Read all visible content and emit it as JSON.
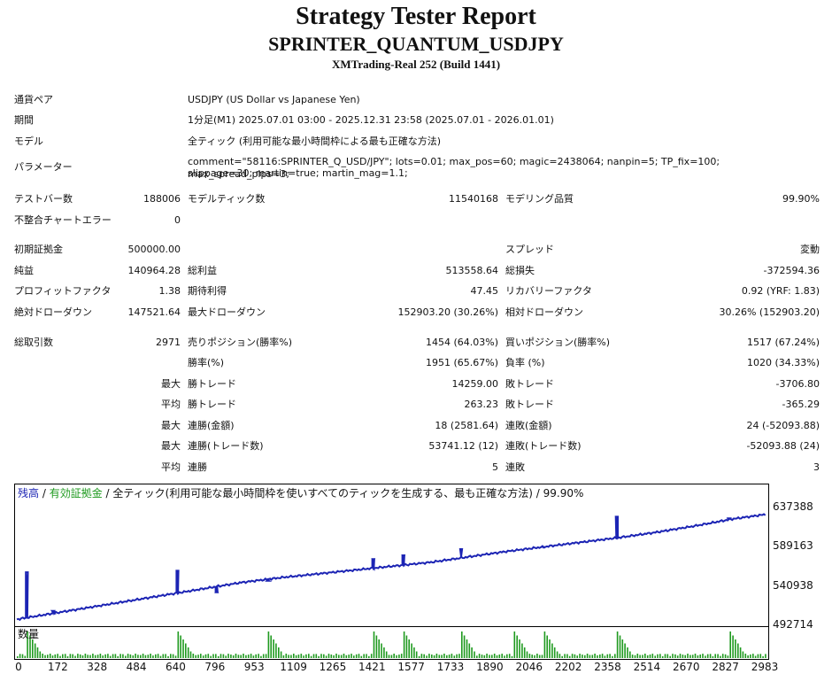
{
  "report": {
    "title": "Strategy Tester Report",
    "subtitle": "SPRINTER_QUANTUM_USDJPY",
    "server": "XMTrading-Real 252 (Build 1441)"
  },
  "info": {
    "symbol_label": "通貨ペア",
    "symbol_value": "USDJPY (US Dollar vs Japanese Yen)",
    "period_label": "期間",
    "period_value": "1分足(M1) 2025.07.01 03:00 - 2025.12.31 23:58 (2025.07.01 - 2026.01.01)",
    "model_label": "モデル",
    "model_value": "全ティック (利用可能な最小時間枠による最も正確な方法)",
    "params_label": "パラメーター",
    "params_line1": "comment=\"58116:SPRINTER_Q_USD/JPY\"; lots=0.01; max_pos=60; magic=2438064; nanpin=5; TP_fix=100; max_spread_pips=3;",
    "params_line2": "slippage=30; martin=true; martin_mag=1.1;"
  },
  "stats": {
    "bars_label": "テストバー数",
    "bars_value": "188006",
    "ticks_label": "モデルティック数",
    "ticks_value": "11540168",
    "quality_label": "モデリング品質",
    "quality_value": "99.90%",
    "errors_label": "不整合チャートエラー",
    "errors_value": "0",
    "deposit_label": "初期証拠金",
    "deposit_value": "500000.00",
    "spread_label": "スプレッド",
    "spread_value": "変動",
    "net_label": "純益",
    "net_value": "140964.28",
    "gross_profit_label": "総利益",
    "gross_profit_value": "513558.64",
    "gross_loss_label": "総損失",
    "gross_loss_value": "-372594.36",
    "pf_label": "プロフィットファクタ",
    "pf_value": "1.38",
    "payoff_label": "期待利得",
    "payoff_value": "47.45",
    "recovery_label": "リカバリーファクタ",
    "recovery_value": "0.92 (YRF: 1.83)",
    "abs_dd_label": "絶対ドローダウン",
    "abs_dd_value": "147521.64",
    "max_dd_label": "最大ドローダウン",
    "max_dd_value": "152903.20 (30.26%)",
    "rel_dd_label": "相対ドローダウン",
    "rel_dd_value": "30.26% (152903.20)",
    "trades_label": "総取引数",
    "trades_value": "2971",
    "short_label": "売りポジション(勝率%)",
    "short_value": "1454 (64.03%)",
    "long_label": "買いポジション(勝率%)",
    "long_value": "1517 (67.24%)",
    "win_rate_label": "勝率(%)",
    "win_rate_value": "1951 (65.67%)",
    "loss_rate_label": "負率 (%)",
    "loss_rate_value": "1020 (34.33%)",
    "max_prefix": "最大",
    "avg_prefix": "平均",
    "largest_win_label": "勝トレード",
    "largest_win_value": "14259.00",
    "largest_loss_label": "敗トレード",
    "largest_loss_value": "-3706.80",
    "avg_win_label": "勝トレード",
    "avg_win_value": "263.23",
    "avg_loss_label": "敗トレード",
    "avg_loss_value": "-365.29",
    "consec_wins_label": "連勝(金額)",
    "consec_wins_value": "18 (2581.64)",
    "consec_losses_label": "連敗(金額)",
    "consec_losses_value": "24 (-52093.88)",
    "consec_profit_label": "連勝(トレード数)",
    "consec_profit_value": "53741.12 (12)",
    "consec_loss_label": "連敗(トレード数)",
    "consec_loss_value": "-52093.88 (24)",
    "avg_consec_wins_label": "連勝",
    "avg_consec_wins_value": "5",
    "avg_consec_losses_label": "連敗",
    "avg_consec_losses_value": "3"
  },
  "chart": {
    "legend_balance": "残高",
    "legend_sep1": " / ",
    "legend_equity": "有効証拠金",
    "legend_rest": " / 全ティック(利用可能な最小時間枠を使いすべてのティックを生成する、最も正確な方法) / 99.90%",
    "volume_label": "数量",
    "y_labels": [
      "637388",
      "589163",
      "540938",
      "492714"
    ],
    "x_labels": [
      "0",
      "172",
      "328",
      "484",
      "640",
      "796",
      "953",
      "1109",
      "1265",
      "1421",
      "1577",
      "1733",
      "1890",
      "2046",
      "2202",
      "2358",
      "2514",
      "2670",
      "2827",
      "2983"
    ],
    "balance_color": "#1c24b4",
    "equity_color": "#1f9a1f"
  },
  "chart_data": {
    "type": "line",
    "series": [
      {
        "name": "残高",
        "x": [
          0,
          150,
          300,
          450,
          600,
          750,
          900,
          1050,
          1200,
          1350,
          1500,
          1650,
          1800,
          1950,
          2100,
          2250,
          2400,
          2550,
          2700,
          2850,
          2983
        ],
        "values": [
          497000,
          505000,
          513000,
          521000,
          529000,
          537000,
          545000,
          551000,
          556000,
          561000,
          566000,
          571000,
          578000,
          585000,
          591000,
          597000,
          603000,
          610000,
          618000,
          627000,
          633000
        ]
      }
    ],
    "spikes": [
      {
        "x": 40,
        "y": 558000
      },
      {
        "x": 145,
        "y": 508000
      },
      {
        "x": 640,
        "y": 560000
      },
      {
        "x": 796,
        "y": 532000
      },
      {
        "x": 1000,
        "y": 547000
      },
      {
        "x": 1420,
        "y": 575000
      },
      {
        "x": 1540,
        "y": 580000
      },
      {
        "x": 1770,
        "y": 588000
      },
      {
        "x": 2100,
        "y": 590000
      },
      {
        "x": 2390,
        "y": 630000
      },
      {
        "x": 2840,
        "y": 628000
      }
    ],
    "volume_peaks": [
      40,
      640,
      1000,
      1420,
      1540,
      1770,
      1980,
      2100,
      2390,
      2840
    ],
    "ylim": [
      492714,
      637388
    ],
    "xlim": [
      0,
      2983
    ]
  }
}
